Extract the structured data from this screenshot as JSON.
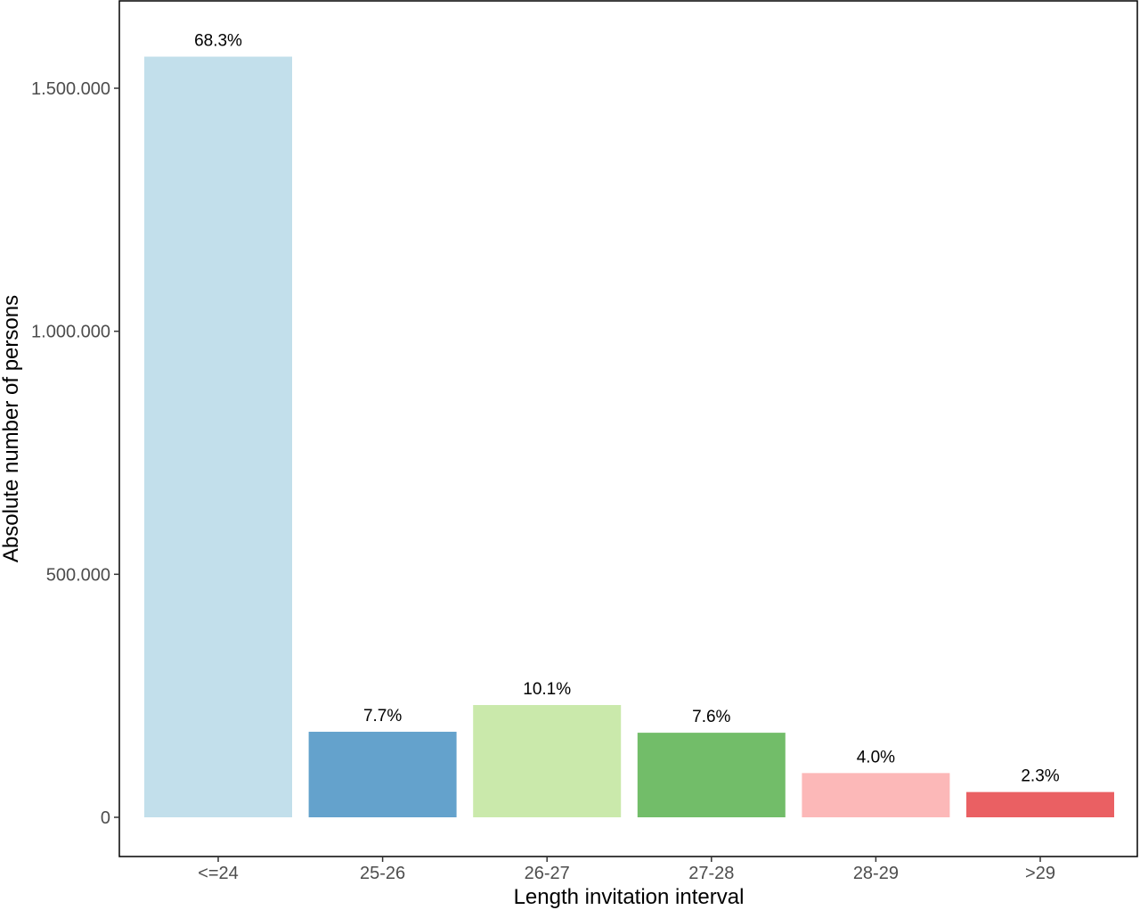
{
  "chart_data": {
    "type": "bar",
    "xlabel": "Length invitation interval",
    "ylabel": "Absolute number of persons",
    "categories": [
      "<=24",
      "25-26",
      "26-27",
      "27-28",
      "28-29",
      ">29"
    ],
    "values": [
      1565000,
      176000,
      231000,
      174000,
      91000,
      52000
    ],
    "labels": [
      "68.3%",
      "7.7%",
      "10.1%",
      "7.6%",
      "4.0%",
      "2.3%"
    ],
    "colors": [
      "#c2dfeb",
      "#64a2cc",
      "#cae9ab",
      "#72bd69",
      "#fcb8b8",
      "#ea6063"
    ],
    "yticks": [
      0,
      500000,
      1000000,
      1500000
    ],
    "ytick_labels": [
      "0",
      "500.000",
      "1.000.000",
      "1.500.000"
    ],
    "ylim": [
      0,
      1640000
    ],
    "grid": false,
    "legend": "none"
  }
}
